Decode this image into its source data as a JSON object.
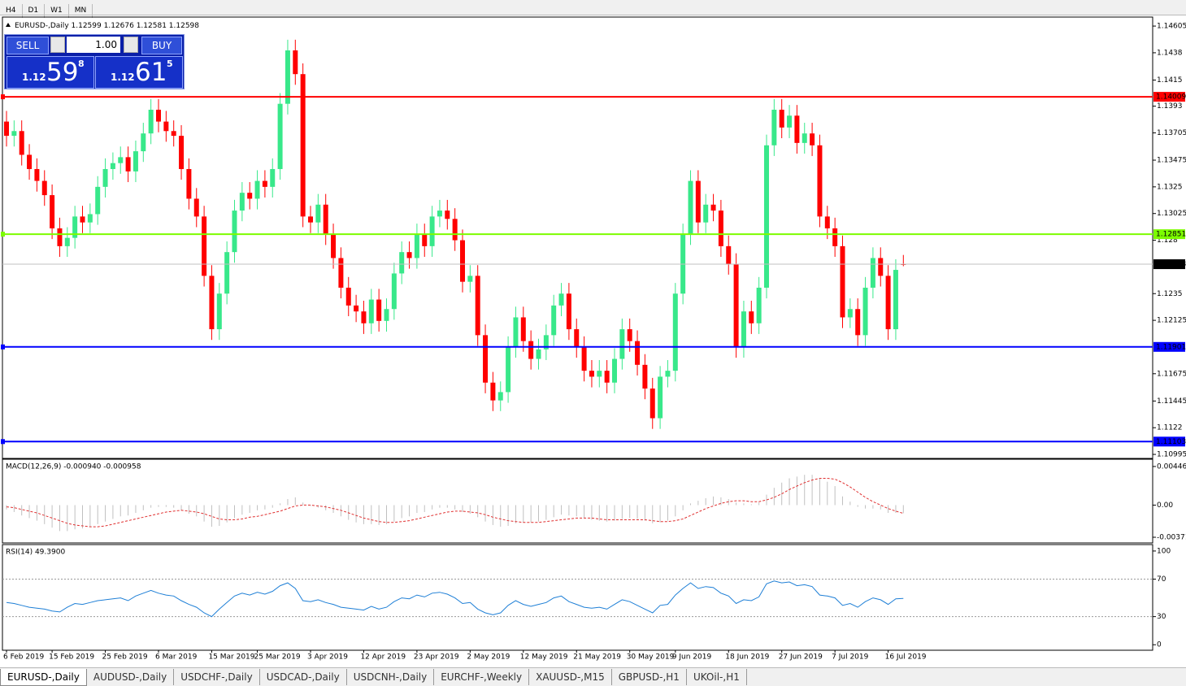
{
  "timeframe_tabs": [
    "H4",
    "D1",
    "W1",
    "MN"
  ],
  "trade_panel": {
    "sell": "SELL",
    "buy": "BUY",
    "lot": "1.00",
    "bid": {
      "big": "1.12",
      "main": "59",
      "small": "8"
    },
    "ask": {
      "big": "1.12",
      "main": "61",
      "small": "5"
    }
  },
  "chart_data": {
    "type": "candlestick",
    "symbol": "EURUSD-,Daily",
    "up_color": "#38e88a",
    "down_color": "#ff0000",
    "ylim": [
      1.10968,
      1.14674
    ],
    "yticks": [
      1.14605,
      1.1438,
      1.1415,
      1.1393,
      1.13705,
      1.13475,
      1.1325,
      1.13025,
      1.128,
      1.1235,
      1.12125,
      1.11675,
      1.11445,
      1.1122,
      1.10995
    ],
    "hlines": [
      {
        "value": 1.14009,
        "color": "#ff0000"
      },
      {
        "value": 1.12851,
        "color": "#7cfc00"
      },
      {
        "value": 1.11901,
        "color": "#0000ff"
      },
      {
        "value": 1.11103,
        "color": "#0000ff"
      }
    ],
    "categories": [
      "6 Feb 2019",
      null,
      null,
      null,
      null,
      null,
      "15 Feb 2019",
      null,
      null,
      null,
      null,
      null,
      null,
      "25 Feb 2019",
      null,
      null,
      null,
      null,
      null,
      null,
      "6 Mar 2019",
      null,
      null,
      null,
      null,
      null,
      null,
      "15 Mar 2019",
      null,
      null,
      null,
      null,
      null,
      "25 Mar 2019",
      null,
      null,
      null,
      null,
      null,
      null,
      "3 Apr 2019",
      null,
      null,
      null,
      null,
      null,
      null,
      "12 Apr 2019",
      null,
      null,
      null,
      null,
      null,
      null,
      "23 Apr 2019",
      null,
      null,
      null,
      null,
      null,
      null,
      "2 May 2019",
      null,
      null,
      null,
      null,
      null,
      null,
      "12 May 2019",
      null,
      null,
      null,
      null,
      null,
      null,
      "21 May 2019",
      null,
      null,
      null,
      null,
      null,
      null,
      "30 May 2019",
      null,
      null,
      null,
      null,
      null,
      "9 Jun 2019",
      null,
      null,
      null,
      null,
      null,
      null,
      "18 Jun 2019",
      null,
      null,
      null,
      null,
      null,
      null,
      "27 Jun 2019",
      null,
      null,
      null,
      null,
      null,
      null,
      "7 Jul 2019",
      null,
      null,
      null,
      null,
      null,
      null,
      "16 Jul 2019",
      null,
      null
    ],
    "candles": [
      [
        1.138,
        1.1389,
        1.1359,
        1.1368
      ],
      [
        1.1368,
        1.1381,
        1.1359,
        1.1372
      ],
      [
        1.1372,
        1.1381,
        1.1343,
        1.1352
      ],
      [
        1.1352,
        1.1361,
        1.1331,
        1.134
      ],
      [
        1.134,
        1.1349,
        1.1321,
        1.133
      ],
      [
        1.133,
        1.1339,
        1.1309,
        1.1318
      ],
      [
        1.1318,
        1.1327,
        1.1281,
        1.129
      ],
      [
        1.129,
        1.1299,
        1.1266,
        1.1275
      ],
      [
        1.1275,
        1.1291,
        1.1266,
        1.1282
      ],
      [
        1.1282,
        1.1309,
        1.1273,
        1.13
      ],
      [
        1.13,
        1.1309,
        1.1286,
        1.1295
      ],
      [
        1.1295,
        1.1311,
        1.1286,
        1.1302
      ],
      [
        1.1302,
        1.1334,
        1.1293,
        1.1325
      ],
      [
        1.1325,
        1.1349,
        1.1316,
        1.134
      ],
      [
        1.134,
        1.1354,
        1.1331,
        1.1345
      ],
      [
        1.1345,
        1.1359,
        1.1336,
        1.135
      ],
      [
        1.135,
        1.1359,
        1.1329,
        1.1338
      ],
      [
        1.1338,
        1.1364,
        1.1329,
        1.1355
      ],
      [
        1.1355,
        1.1379,
        1.1346,
        1.137
      ],
      [
        1.137,
        1.1399,
        1.1361,
        1.139
      ],
      [
        1.139,
        1.1399,
        1.1371,
        1.138
      ],
      [
        1.138,
        1.1389,
        1.1363,
        1.1372
      ],
      [
        1.1372,
        1.1381,
        1.1359,
        1.1368
      ],
      [
        1.1368,
        1.1377,
        1.1331,
        1.134
      ],
      [
        1.134,
        1.1349,
        1.1306,
        1.1315
      ],
      [
        1.1315,
        1.1324,
        1.1291,
        1.13
      ],
      [
        1.13,
        1.1309,
        1.1241,
        1.125
      ],
      [
        1.125,
        1.1259,
        1.1196,
        1.1205
      ],
      [
        1.1205,
        1.1244,
        1.1196,
        1.1235
      ],
      [
        1.1235,
        1.1279,
        1.1226,
        1.127
      ],
      [
        1.127,
        1.1314,
        1.1261,
        1.1305
      ],
      [
        1.1305,
        1.1329,
        1.1296,
        1.132
      ],
      [
        1.132,
        1.1329,
        1.1306,
        1.1315
      ],
      [
        1.1315,
        1.1339,
        1.1306,
        1.133
      ],
      [
        1.133,
        1.1339,
        1.1316,
        1.1325
      ],
      [
        1.1325,
        1.1349,
        1.1316,
        1.134
      ],
      [
        1.134,
        1.1404,
        1.1331,
        1.1395
      ],
      [
        1.1395,
        1.1449,
        1.1386,
        1.144
      ],
      [
        1.144,
        1.1449,
        1.1411,
        1.142
      ],
      [
        1.142,
        1.1429,
        1.1291,
        1.13
      ],
      [
        1.13,
        1.1309,
        1.1286,
        1.1295
      ],
      [
        1.1295,
        1.1319,
        1.1286,
        1.131
      ],
      [
        1.131,
        1.1319,
        1.1276,
        1.1285
      ],
      [
        1.1285,
        1.1294,
        1.1256,
        1.1265
      ],
      [
        1.1265,
        1.1274,
        1.1231,
        1.124
      ],
      [
        1.124,
        1.1249,
        1.1216,
        1.1225
      ],
      [
        1.1225,
        1.1234,
        1.1211,
        1.122
      ],
      [
        1.122,
        1.1229,
        1.1201,
        1.121
      ],
      [
        1.121,
        1.1239,
        1.1201,
        1.123
      ],
      [
        1.123,
        1.1239,
        1.1203,
        1.1212
      ],
      [
        1.1212,
        1.1231,
        1.1203,
        1.1222
      ],
      [
        1.1222,
        1.1261,
        1.1213,
        1.1252
      ],
      [
        1.1252,
        1.1279,
        1.1243,
        1.127
      ],
      [
        1.127,
        1.1279,
        1.1256,
        1.1265
      ],
      [
        1.1265,
        1.1294,
        1.1256,
        1.1285
      ],
      [
        1.1285,
        1.1294,
        1.1266,
        1.1275
      ],
      [
        1.1275,
        1.1309,
        1.1266,
        1.13
      ],
      [
        1.13,
        1.1314,
        1.1291,
        1.1305
      ],
      [
        1.1305,
        1.1314,
        1.1289,
        1.1298
      ],
      [
        1.1298,
        1.1307,
        1.1271,
        1.128
      ],
      [
        1.128,
        1.1289,
        1.1236,
        1.1245
      ],
      [
        1.1245,
        1.1259,
        1.1236,
        1.125
      ],
      [
        1.125,
        1.1259,
        1.1191,
        1.12
      ],
      [
        1.12,
        1.1209,
        1.1151,
        1.116
      ],
      [
        1.116,
        1.1169,
        1.1136,
        1.1145
      ],
      [
        1.1145,
        1.1161,
        1.1136,
        1.1152
      ],
      [
        1.1152,
        1.1199,
        1.1143,
        1.119
      ],
      [
        1.119,
        1.1224,
        1.1181,
        1.1215
      ],
      [
        1.1215,
        1.1224,
        1.1186,
        1.1195
      ],
      [
        1.1195,
        1.1204,
        1.1171,
        1.118
      ],
      [
        1.118,
        1.1197,
        1.1171,
        1.1188
      ],
      [
        1.1188,
        1.1209,
        1.1179,
        1.12
      ],
      [
        1.12,
        1.1234,
        1.1191,
        1.1225
      ],
      [
        1.1225,
        1.1244,
        1.1216,
        1.1235
      ],
      [
        1.1235,
        1.1244,
        1.1196,
        1.1205
      ],
      [
        1.1205,
        1.1214,
        1.1181,
        1.119
      ],
      [
        1.119,
        1.1199,
        1.1161,
        1.117
      ],
      [
        1.117,
        1.1179,
        1.1156,
        1.1165
      ],
      [
        1.1165,
        1.1179,
        1.1156,
        1.117
      ],
      [
        1.117,
        1.1179,
        1.1151,
        1.116
      ],
      [
        1.116,
        1.1189,
        1.1151,
        1.118
      ],
      [
        1.118,
        1.1214,
        1.1171,
        1.1205
      ],
      [
        1.1205,
        1.1214,
        1.1186,
        1.1195
      ],
      [
        1.1195,
        1.1204,
        1.1166,
        1.1175
      ],
      [
        1.1175,
        1.1184,
        1.1146,
        1.1155
      ],
      [
        1.1155,
        1.1164,
        1.1121,
        1.113
      ],
      [
        1.113,
        1.1174,
        1.1121,
        1.1165
      ],
      [
        1.1165,
        1.1179,
        1.1156,
        1.117
      ],
      [
        1.117,
        1.1244,
        1.1161,
        1.1235
      ],
      [
        1.1235,
        1.1294,
        1.1226,
        1.1285
      ],
      [
        1.1285,
        1.1339,
        1.1276,
        1.133
      ],
      [
        1.133,
        1.1339,
        1.1286,
        1.1295
      ],
      [
        1.1295,
        1.1319,
        1.1286,
        1.131
      ],
      [
        1.131,
        1.1319,
        1.1296,
        1.1305
      ],
      [
        1.1305,
        1.1314,
        1.1266,
        1.1275
      ],
      [
        1.1275,
        1.1284,
        1.1251,
        1.126
      ],
      [
        1.126,
        1.1269,
        1.1181,
        1.119
      ],
      [
        1.119,
        1.1229,
        1.1181,
        1.122
      ],
      [
        1.122,
        1.1229,
        1.1201,
        1.121
      ],
      [
        1.121,
        1.1249,
        1.1201,
        1.124
      ],
      [
        1.124,
        1.1369,
        1.1231,
        1.136
      ],
      [
        1.136,
        1.1399,
        1.1351,
        1.139
      ],
      [
        1.139,
        1.1399,
        1.1366,
        1.1375
      ],
      [
        1.1375,
        1.1394,
        1.1366,
        1.1385
      ],
      [
        1.1385,
        1.1394,
        1.1353,
        1.1362
      ],
      [
        1.1362,
        1.1379,
        1.1353,
        1.137
      ],
      [
        1.137,
        1.1379,
        1.1351,
        1.136
      ],
      [
        1.136,
        1.1369,
        1.1291,
        1.13
      ],
      [
        1.13,
        1.1309,
        1.1281,
        1.129
      ],
      [
        1.129,
        1.1299,
        1.1266,
        1.1275
      ],
      [
        1.1275,
        1.1284,
        1.1206,
        1.1215
      ],
      [
        1.1215,
        1.1231,
        1.1206,
        1.1222
      ],
      [
        1.1222,
        1.1231,
        1.1191,
        1.12
      ],
      [
        1.12,
        1.1249,
        1.1191,
        1.124
      ],
      [
        1.124,
        1.1274,
        1.1231,
        1.1265
      ],
      [
        1.1265,
        1.1274,
        1.1241,
        1.125
      ],
      [
        1.125,
        1.1259,
        1.1196,
        1.1205
      ],
      [
        1.1205,
        1.1264,
        1.1196,
        1.1255
      ],
      [
        1.12599,
        1.12676,
        1.12581,
        1.12598
      ]
    ],
    "macd": {
      "label": "MACD(12,26,9) -0.000940 -0.000958",
      "hist_color": "#c0c0c0",
      "signal_color": "#e03030",
      "ylim": [
        -0.00428,
        0.00521
      ],
      "yticks": [
        0.004465,
        {
          "value": 0,
          "label": "0.00"
        },
        -0.003715
      ],
      "histogram": [
        -0.0005,
        -0.0008,
        -0.0012,
        -0.0015,
        -0.0018,
        -0.0022,
        -0.0026,
        -0.003,
        -0.003,
        -0.0028,
        -0.0027,
        -0.0025,
        -0.0022,
        -0.0019,
        -0.0016,
        -0.0013,
        -0.0012,
        -0.0009,
        -0.0006,
        -0.0003,
        -0.0002,
        -0.0002,
        -0.0003,
        -0.0006,
        -0.001,
        -0.0013,
        -0.0019,
        -0.0025,
        -0.0024,
        -0.002,
        -0.0015,
        -0.0011,
        -0.0009,
        -0.0006,
        -0.0005,
        -0.0003,
        0.0002,
        0.0007,
        0.0009,
        0.0003,
        -0.0001,
        -0.0003,
        -0.0006,
        -0.0009,
        -0.0013,
        -0.0017,
        -0.002,
        -0.0022,
        -0.0022,
        -0.0023,
        -0.0022,
        -0.0019,
        -0.0015,
        -0.0013,
        -0.0009,
        -0.0008,
        -0.0005,
        -0.0003,
        -0.0003,
        -0.0005,
        -0.0008,
        -0.001,
        -0.0014,
        -0.0019,
        -0.0023,
        -0.0025,
        -0.0024,
        -0.0021,
        -0.002,
        -0.002,
        -0.0019,
        -0.0017,
        -0.0014,
        -0.0011,
        -0.0012,
        -0.0013,
        -0.0015,
        -0.0017,
        -0.0018,
        -0.0019,
        -0.0018,
        -0.0016,
        -0.0015,
        -0.0016,
        -0.0018,
        -0.0021,
        -0.002,
        -0.0018,
        -0.0013,
        -0.0006,
        0.0002,
        0.0005,
        0.0008,
        0.001,
        0.0009,
        0.0007,
        0.0003,
        0.0002,
        0.0001,
        0.0003,
        0.0012,
        0.002,
        0.0026,
        0.0031,
        0.0033,
        0.0035,
        0.0035,
        0.0031,
        0.0027,
        0.0022,
        0.001,
        0.0004,
        -0.0002,
        -0.0004,
        -0.0004,
        -0.0005,
        -0.0009,
        -0.0009,
        -0.00094
      ],
      "signal": [
        -0.0002,
        -0.0003,
        -0.0005,
        -0.0007,
        -0.0009,
        -0.0012,
        -0.0015,
        -0.0018,
        -0.0021,
        -0.0023,
        -0.0024,
        -0.0025,
        -0.0025,
        -0.0024,
        -0.0022,
        -0.002,
        -0.0018,
        -0.0016,
        -0.0014,
        -0.0012,
        -0.001,
        -0.0008,
        -0.0007,
        -0.0006,
        -0.0007,
        -0.0008,
        -0.001,
        -0.0013,
        -0.0016,
        -0.0017,
        -0.0017,
        -0.0016,
        -0.0014,
        -0.0013,
        -0.0011,
        -0.0009,
        -0.0007,
        -0.0004,
        -0.0001,
        0,
        0,
        -0.0001,
        -0.0002,
        -0.0004,
        -0.0006,
        -0.0009,
        -0.0012,
        -0.0015,
        -0.0017,
        -0.0019,
        -0.002,
        -0.002,
        -0.0019,
        -0.0018,
        -0.0016,
        -0.0014,
        -0.0012,
        -0.001,
        -0.0008,
        -0.0007,
        -0.0007,
        -0.0008,
        -0.0009,
        -0.0011,
        -0.0014,
        -0.0016,
        -0.0018,
        -0.0019,
        -0.002,
        -0.002,
        -0.002,
        -0.0019,
        -0.0018,
        -0.0017,
        -0.0016,
        -0.0015,
        -0.0015,
        -0.0015,
        -0.0016,
        -0.0017,
        -0.0017,
        -0.0017,
        -0.0017,
        -0.0017,
        -0.0017,
        -0.0018,
        -0.0019,
        -0.0019,
        -0.0018,
        -0.0016,
        -0.0012,
        -0.0008,
        -0.0004,
        -0.0001,
        0.0002,
        0.0004,
        0.0005,
        0.0005,
        0.0004,
        0.0004,
        0.0006,
        0.0009,
        0.0013,
        0.0018,
        0.0022,
        0.0026,
        0.0029,
        0.0031,
        0.0031,
        0.003,
        0.0026,
        0.0021,
        0.0015,
        0.0009,
        0.0004,
        0,
        -0.0004,
        -0.0007,
        -0.000958
      ]
    },
    "rsi": {
      "label": "RSI(14) 49.3900",
      "color": "#1e7fd6",
      "ylim": [
        -5,
        106
      ],
      "yticks": [
        100,
        70,
        30,
        0
      ],
      "levels": [
        70,
        30
      ],
      "values": [
        45,
        44,
        42,
        40,
        39,
        38,
        36,
        35,
        40,
        44,
        43,
        45,
        47,
        48,
        49,
        50,
        47,
        52,
        55,
        58,
        55,
        53,
        52,
        47,
        43,
        40,
        34,
        30,
        38,
        45,
        52,
        55,
        53,
        56,
        54,
        57,
        63,
        66,
        60,
        47,
        46,
        48,
        45,
        43,
        40,
        39,
        38,
        37,
        41,
        38,
        40,
        46,
        50,
        49,
        53,
        51,
        55,
        56,
        54,
        50,
        44,
        45,
        38,
        34,
        32,
        34,
        42,
        47,
        43,
        41,
        43,
        45,
        50,
        52,
        46,
        43,
        40,
        39,
        40,
        38,
        43,
        48,
        46,
        42,
        38,
        34,
        42,
        43,
        53,
        60,
        66,
        60,
        62,
        61,
        55,
        52,
        44,
        48,
        47,
        51,
        65,
        68,
        66,
        67,
        63,
        64,
        62,
        53,
        52,
        50,
        42,
        44,
        40,
        46,
        50,
        48,
        43,
        49,
        49.39
      ]
    }
  },
  "bottom_tabs": [
    "EURUSD-,Daily",
    "AUDUSD-,Daily",
    "USDCHF-,Daily",
    "USDCAD-,Daily",
    "USDCNH-,Daily",
    "EURCHF-,Weekly",
    "XAUUSD-,M15",
    "GBPUSD-,H1",
    "UKOil-,H1"
  ]
}
